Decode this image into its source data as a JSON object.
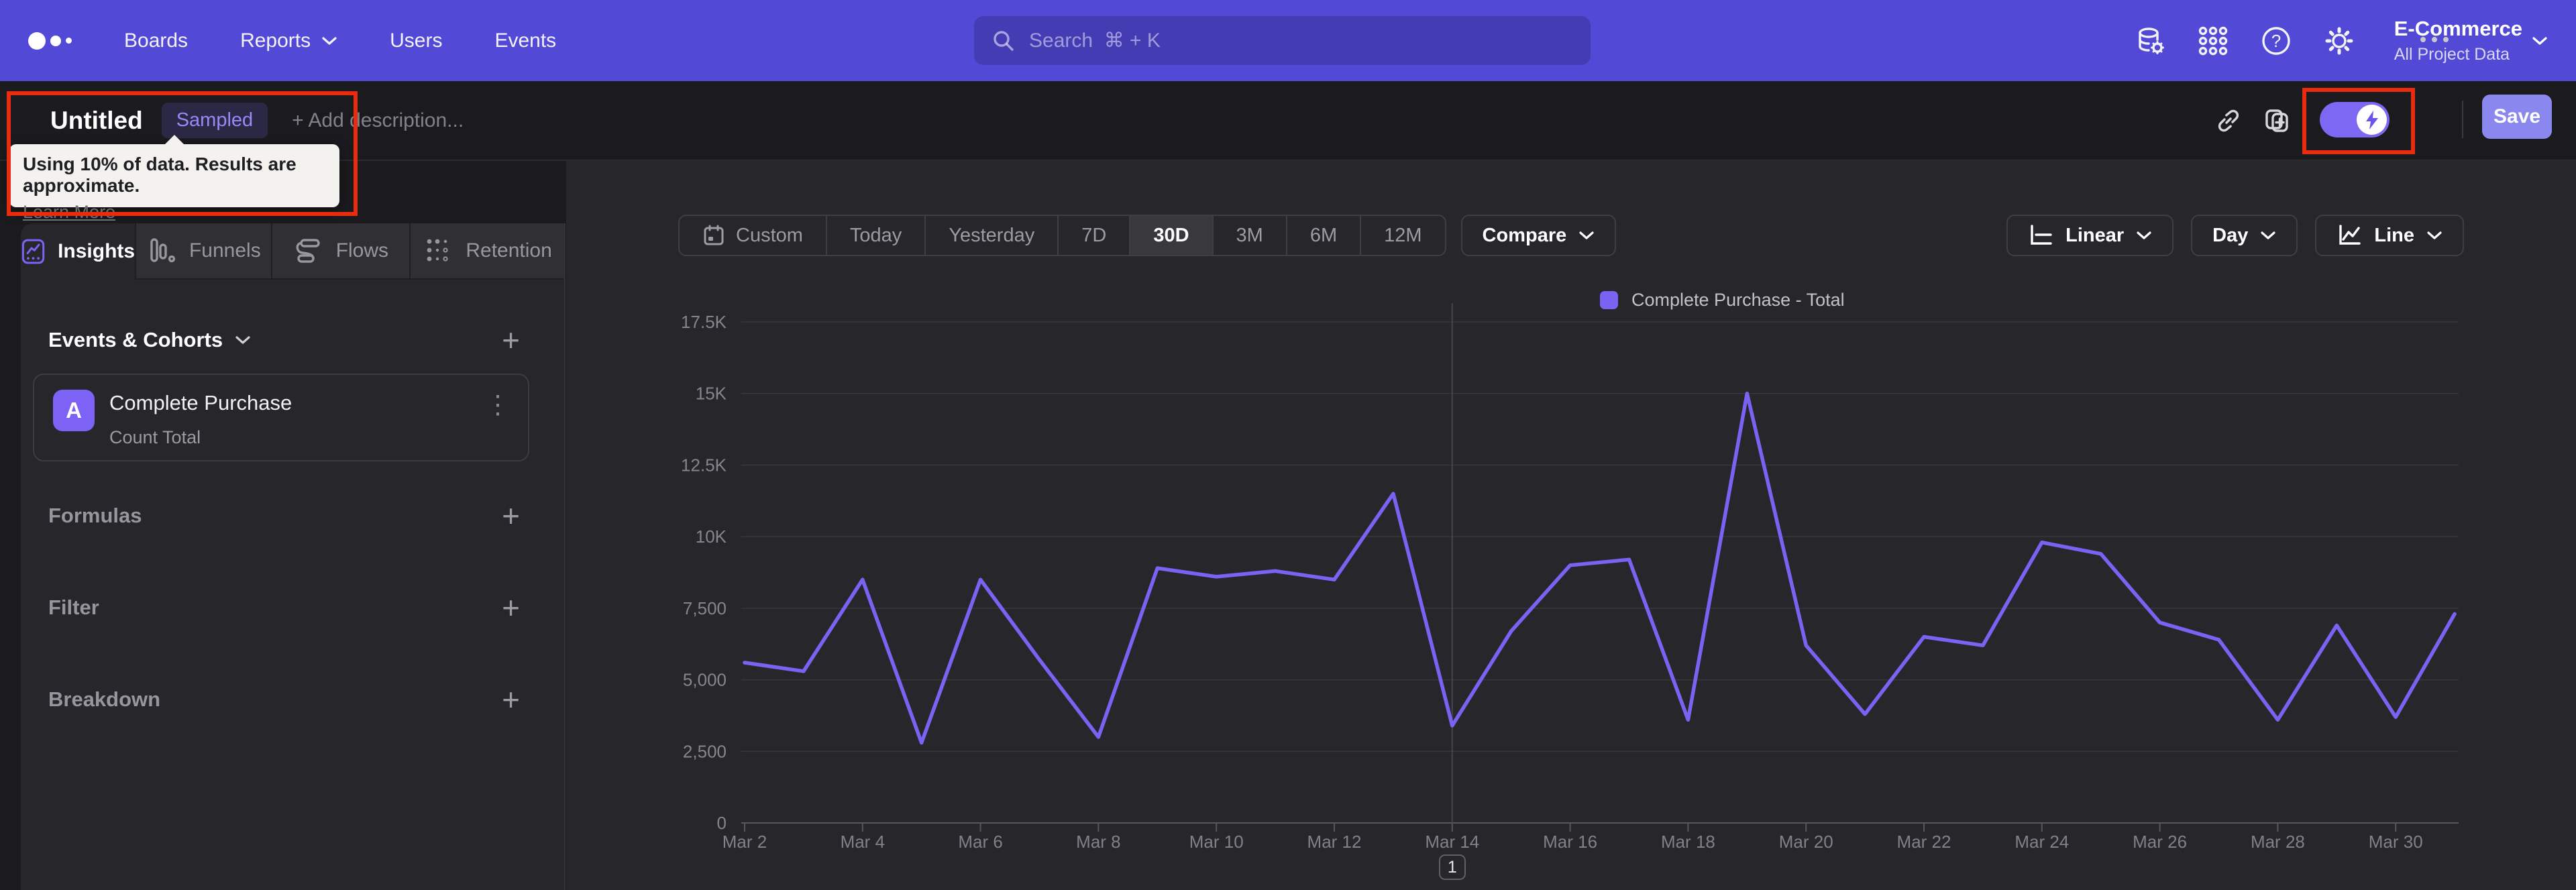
{
  "nav": {
    "items": [
      "Boards",
      "Reports",
      "Users",
      "Events"
    ],
    "search_placeholder": "Search  ⌘ + K",
    "project_name": "E-Commerce",
    "project_subtitle": "All Project Data"
  },
  "header": {
    "title": "Untitled",
    "badge": "Sampled",
    "add_description": "+ Add description...",
    "save_label": "Save"
  },
  "sampling_tooltip": {
    "message": "Using 10% of data. Results are approximate.",
    "link_label": "Learn More"
  },
  "tabs": [
    {
      "label": "Insights"
    },
    {
      "label": "Funnels"
    },
    {
      "label": "Flows"
    },
    {
      "label": "Retention"
    }
  ],
  "builder": {
    "events_heading": "Events & Cohorts",
    "event": {
      "letter": "A",
      "name": "Complete Purchase",
      "metric": "Count Total"
    },
    "sections": [
      "Formulas",
      "Filter",
      "Breakdown"
    ]
  },
  "toolbar": {
    "ranges": [
      "Custom",
      "Today",
      "Yesterday",
      "7D",
      "30D",
      "3M",
      "6M",
      "12M"
    ],
    "active_range": "30D",
    "compare_label": "Compare",
    "scale_label": "Linear",
    "interval_label": "Day",
    "chart_type_label": "Line"
  },
  "chart_data": {
    "type": "line",
    "title": "",
    "legend": [
      {
        "name": "Complete Purchase - Total",
        "color": "#7b62f2"
      }
    ],
    "x": [
      "Mar 2",
      "Mar 3",
      "Mar 4",
      "Mar 5",
      "Mar 6",
      "Mar 7",
      "Mar 8",
      "Mar 9",
      "Mar 10",
      "Mar 11",
      "Mar 12",
      "Mar 13",
      "Mar 14",
      "Mar 15",
      "Mar 16",
      "Mar 17",
      "Mar 18",
      "Mar 19",
      "Mar 20",
      "Mar 21",
      "Mar 22",
      "Mar 23",
      "Mar 24",
      "Mar 25",
      "Mar 26",
      "Mar 27",
      "Mar 28",
      "Mar 29",
      "Mar 30",
      "Mar 31"
    ],
    "x_tick_labels": [
      "Mar 2",
      "Mar 4",
      "Mar 6",
      "Mar 8",
      "Mar 10",
      "Mar 12",
      "Mar 14",
      "Mar 16",
      "Mar 18",
      "Mar 20",
      "Mar 22",
      "Mar 24",
      "Mar 26",
      "Mar 28",
      "Mar 30"
    ],
    "series": [
      {
        "name": "Complete Purchase - Total",
        "values": [
          5600,
          5300,
          8500,
          2800,
          8500,
          5700,
          3000,
          8900,
          8600,
          8800,
          8500,
          11500,
          3400,
          6700,
          9000,
          9200,
          3600,
          15000,
          6200,
          3800,
          6500,
          6200,
          9800,
          9400,
          7000,
          6400,
          3600,
          6900,
          3700,
          7300
        ]
      }
    ],
    "ylim": [
      0,
      17500
    ],
    "y_ticks": [
      {
        "label": "17.5K",
        "value": 17500
      },
      {
        "label": "15K",
        "value": 15000
      },
      {
        "label": "12.5K",
        "value": 12500
      },
      {
        "label": "10K",
        "value": 10000
      },
      {
        "label": "7,500",
        "value": 7500
      },
      {
        "label": "5,000",
        "value": 5000
      },
      {
        "label": "2,500",
        "value": 2500
      },
      {
        "label": "0",
        "value": 0
      }
    ],
    "grid": "horizontal",
    "legend_position": "top-center",
    "annotations": [
      {
        "marker": "1",
        "x": "Mar 14"
      }
    ]
  },
  "colors": {
    "nav_bg": "#5249d6",
    "page_bg": "#1b1b1f",
    "card_bg": "#26262b",
    "accent": "#7b62f2",
    "save_button": "#8a88ef",
    "annotation_red": "#ea2b0f",
    "gridline": "#37373c",
    "axis": "#56565c",
    "tick_label": "#85858b",
    "tooltip_bg": "#f3f2ef"
  }
}
